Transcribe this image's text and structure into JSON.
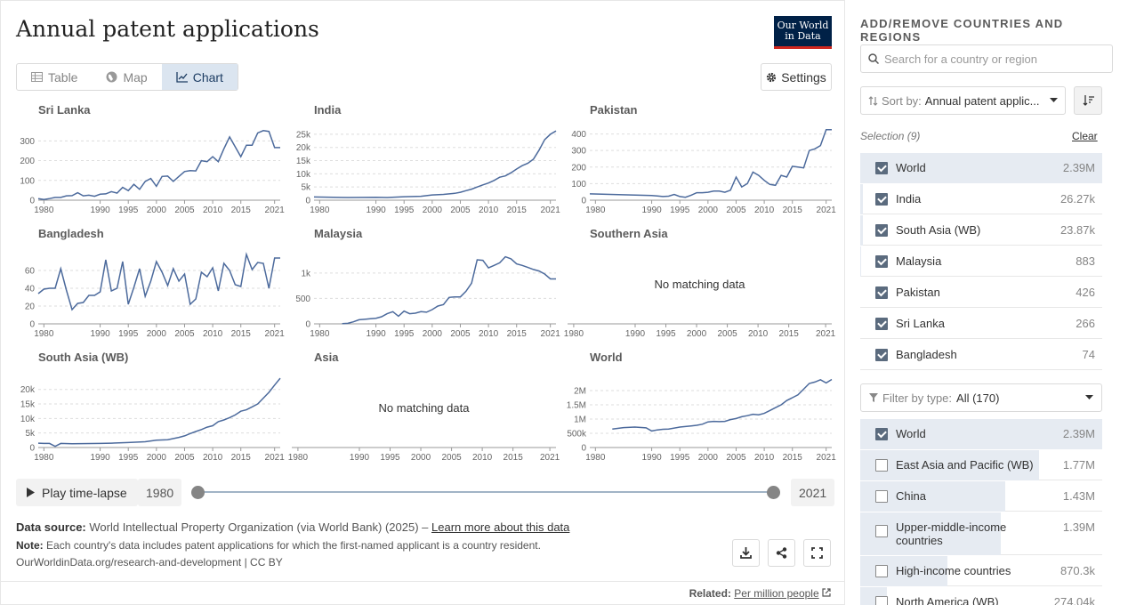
{
  "header": {
    "title": "Annual patent applications",
    "logo_line1": "Our World",
    "logo_line2": "in Data"
  },
  "tabs": [
    {
      "label": "Table",
      "icon": "table-icon"
    },
    {
      "label": "Map",
      "icon": "globe-icon"
    },
    {
      "label": "Chart",
      "icon": "line-chart-icon",
      "active": true
    }
  ],
  "settings_label": "Settings",
  "timeline": {
    "play_label": "Play time-lapse",
    "start": "1980",
    "end": "2021"
  },
  "footer": {
    "source_label": "Data source:",
    "source_text": "World Intellectual Property Organization (via World Bank) (2025) – ",
    "learn_more": "Learn more about this data",
    "note_label": "Note:",
    "note_text": "Each country's data includes patent applications for which the first-named applicant is a country resident.",
    "url": "OurWorldinData.org/research-and-development | CC BY",
    "related_label": "Related:",
    "related_link": "Per million people"
  },
  "sidebar": {
    "title": "ADD/REMOVE COUNTRIES AND REGIONS",
    "search_placeholder": "Search for a country or region",
    "sort_label": "Sort by:",
    "sort_value": "Annual patent applic...",
    "selection_label": "Selection (9)",
    "clear_label": "Clear",
    "selected": [
      {
        "name": "World",
        "value": "2.39M",
        "checked": true,
        "share": 1.0
      },
      {
        "name": "India",
        "value": "26.27k",
        "checked": true,
        "share": 0.011
      },
      {
        "name": "South Asia (WB)",
        "value": "23.87k",
        "checked": true,
        "share": 0.01
      },
      {
        "name": "Malaysia",
        "value": "883",
        "checked": true,
        "share": 0.0004
      },
      {
        "name": "Pakistan",
        "value": "426",
        "checked": true,
        "share": 0.0002
      },
      {
        "name": "Sri Lanka",
        "value": "266",
        "checked": true,
        "share": 0.0001
      },
      {
        "name": "Bangladesh",
        "value": "74",
        "checked": true,
        "share": 3e-05
      }
    ],
    "filter_label": "Filter by type:",
    "filter_value": "All (170)",
    "all": [
      {
        "name": "World",
        "value": "2.39M",
        "checked": true,
        "share": 1.0
      },
      {
        "name": "East Asia and Pacific (WB)",
        "value": "1.77M",
        "checked": false,
        "share": 0.74
      },
      {
        "name": "China",
        "value": "1.43M",
        "checked": false,
        "share": 0.6
      },
      {
        "name": "Upper-middle-income countries",
        "value": "1.39M",
        "checked": false,
        "share": 0.58
      },
      {
        "name": "High-income countries",
        "value": "870.3k",
        "checked": false,
        "share": 0.36
      },
      {
        "name": "North America (WB)",
        "value": "274.04k",
        "checked": false,
        "share": 0.11
      }
    ]
  },
  "chart_data": [
    {
      "type": "line",
      "title": "Sri Lanka",
      "yticks": [
        "0",
        "100",
        "200",
        "300"
      ],
      "ylim": [
        0,
        360
      ],
      "x": [
        1979,
        1980,
        1981,
        1982,
        1983,
        1984,
        1985,
        1986,
        1987,
        1988,
        1989,
        1990,
        1991,
        1992,
        1993,
        1994,
        1995,
        1996,
        1997,
        1998,
        1999,
        2000,
        2001,
        2002,
        2003,
        2004,
        2005,
        2006,
        2007,
        2008,
        2009,
        2010,
        2011,
        2012,
        2013,
        2014,
        2015,
        2016,
        2017,
        2018,
        2019,
        2020,
        2021,
        2022
      ],
      "values": [
        8,
        3,
        8,
        14,
        14,
        22,
        23,
        38,
        22,
        25,
        20,
        30,
        32,
        43,
        36,
        65,
        48,
        80,
        55,
        95,
        110,
        70,
        120,
        122,
        95,
        120,
        145,
        150,
        148,
        200,
        195,
        220,
        195,
        260,
        320,
        270,
        220,
        278,
        278,
        340,
        352,
        348,
        266,
        266
      ],
      "xticks": [
        "1980",
        "1990",
        "1995",
        "2000",
        "2005",
        "2010",
        "2015",
        "2021"
      ]
    },
    {
      "type": "line",
      "title": "India",
      "yticks": [
        "0",
        "5k",
        "10k",
        "15k",
        "20k",
        "25k"
      ],
      "ylim": [
        0,
        27000
      ],
      "x": [
        1979,
        1985,
        1990,
        1992,
        1995,
        1998,
        2000,
        2002,
        2004,
        2005,
        2006,
        2007,
        2008,
        2009,
        2010,
        2011,
        2012,
        2013,
        2014,
        2015,
        2016,
        2017,
        2018,
        2019,
        2020,
        2021,
        2022
      ],
      "values": [
        1200,
        1000,
        1100,
        1000,
        1300,
        1500,
        2000,
        2200,
        2600,
        3000,
        3600,
        4200,
        5000,
        5800,
        6500,
        7500,
        8700,
        9200,
        10400,
        11800,
        13100,
        14000,
        15600,
        19000,
        23000,
        25000,
        26270
      ],
      "xticks": [
        "1980",
        "1990",
        "1995",
        "2000",
        "2005",
        "2010",
        "2015",
        "2021"
      ]
    },
    {
      "type": "line",
      "title": "Pakistan",
      "yticks": [
        "0",
        "100",
        "200",
        "300",
        "400"
      ],
      "ylim": [
        0,
        430
      ],
      "x": [
        1979,
        1990,
        1991,
        1992,
        1993,
        1994,
        1995,
        1996,
        1997,
        1998,
        1999,
        2000,
        2001,
        2002,
        2003,
        2004,
        2005,
        2006,
        2007,
        2008,
        2009,
        2010,
        2011,
        2012,
        2013,
        2014,
        2015,
        2016,
        2017,
        2018,
        2019,
        2020,
        2021,
        2022
      ],
      "values": [
        38,
        28,
        25,
        22,
        24,
        35,
        22,
        18,
        30,
        45,
        45,
        48,
        55,
        55,
        48,
        60,
        140,
        80,
        100,
        170,
        150,
        120,
        95,
        90,
        150,
        140,
        205,
        200,
        195,
        300,
        310,
        330,
        426,
        426
      ],
      "xticks": [
        "1980",
        "1990",
        "1995",
        "2000",
        "2005",
        "2010",
        "2015",
        "2021"
      ]
    },
    {
      "type": "line",
      "title": "Bangladesh",
      "yticks": [
        "0",
        "20",
        "40",
        "60"
      ],
      "ylim": [
        0,
        80
      ],
      "x": [
        1979,
        1980,
        1981,
        1982,
        1983,
        1984,
        1985,
        1986,
        1987,
        1988,
        1989,
        1990,
        1991,
        1992,
        1993,
        1994,
        1995,
        1996,
        1997,
        1998,
        1999,
        2000,
        2001,
        2002,
        2003,
        2004,
        2005,
        2006,
        2007,
        2008,
        2009,
        2010,
        2011,
        2012,
        2013,
        2014,
        2015,
        2016,
        2017,
        2018,
        2019,
        2020,
        2021,
        2022
      ],
      "values": [
        34,
        39,
        40,
        40,
        62,
        38,
        16,
        23,
        24,
        32,
        32,
        36,
        72,
        37,
        40,
        70,
        22,
        41,
        62,
        31,
        48,
        70,
        58,
        43,
        62,
        48,
        56,
        22,
        28,
        58,
        53,
        63,
        37,
        68,
        60,
        44,
        42,
        78,
        61,
        69,
        68,
        40,
        74,
        74
      ],
      "xticks": [
        "1980",
        "1990",
        "1995",
        "2000",
        "2005",
        "2010",
        "2015",
        "2021"
      ]
    },
    {
      "type": "line",
      "title": "Malaysia",
      "yticks": [
        "0",
        "500",
        "1k"
      ],
      "ylim": [
        0,
        1400
      ],
      "x": [
        1984,
        1985,
        1986,
        1987,
        1988,
        1989,
        1990,
        1991,
        1992,
        1993,
        1994,
        1995,
        1996,
        1997,
        1998,
        1999,
        2000,
        2001,
        2002,
        2003,
        2004,
        2005,
        2006,
        2007,
        2008,
        2009,
        2010,
        2011,
        2012,
        2013,
        2014,
        2015,
        2016,
        2017,
        2018,
        2019,
        2020,
        2021,
        2022
      ],
      "values": [
        5,
        10,
        40,
        80,
        90,
        100,
        110,
        140,
        200,
        240,
        150,
        250,
        200,
        210,
        240,
        230,
        280,
        350,
        380,
        520,
        530,
        530,
        640,
        800,
        1260,
        1250,
        1100,
        1150,
        1200,
        1320,
        1280,
        1180,
        1150,
        1110,
        1070,
        1040,
        980,
        883,
        883
      ],
      "xticks": [
        "1980",
        "1990",
        "1995",
        "2000",
        "2005",
        "2010",
        "2015",
        "2021"
      ]
    },
    {
      "type": "line",
      "title": "Southern Asia",
      "message": "No matching data",
      "xticks": [
        "1980",
        "1990",
        "1995",
        "2000",
        "2005",
        "2010",
        "2015",
        "2021"
      ]
    },
    {
      "type": "line",
      "title": "South Asia (WB)",
      "yticks": [
        "0",
        "5k",
        "10k",
        "15k",
        "20k"
      ],
      "ylim": [
        0,
        24500
      ],
      "x": [
        1979,
        1980,
        1981,
        1982,
        1983,
        1985,
        1990,
        1992,
        1995,
        1998,
        2000,
        2002,
        2004,
        2005,
        2006,
        2007,
        2008,
        2009,
        2010,
        2011,
        2012,
        2013,
        2014,
        2015,
        2016,
        2017,
        2018,
        2019,
        2020,
        2021,
        2022
      ],
      "values": [
        1500,
        1400,
        1400,
        400,
        1400,
        1300,
        1400,
        1500,
        1700,
        2000,
        2500,
        2700,
        3500,
        4000,
        4800,
        5500,
        6200,
        7000,
        7500,
        8900,
        9500,
        10300,
        11200,
        12500,
        13000,
        14000,
        15000,
        17000,
        19000,
        21500,
        23870
      ],
      "xticks": [
        "1980",
        "1990",
        "1995",
        "2000",
        "2005",
        "2010",
        "2015",
        "2021"
      ]
    },
    {
      "type": "line",
      "title": "Asia",
      "message": "No matching data",
      "xticks": [
        "1980",
        "1990",
        "1995",
        "2000",
        "2005",
        "2010",
        "2015",
        "2021"
      ]
    },
    {
      "type": "line",
      "title": "World",
      "yticks": [
        "0",
        "500k",
        "1M",
        "1.5M",
        "2M"
      ],
      "ylim": [
        0,
        2500000
      ],
      "x": [
        1983,
        1985,
        1987,
        1989,
        1990,
        1991,
        1992,
        1993,
        1995,
        1997,
        1998,
        1999,
        2000,
        2001,
        2002,
        2003,
        2004,
        2005,
        2006,
        2007,
        2008,
        2009,
        2010,
        2011,
        2012,
        2013,
        2014,
        2015,
        2016,
        2017,
        2018,
        2019,
        2020,
        2021,
        2022
      ],
      "values": [
        650000,
        700000,
        720000,
        690000,
        580000,
        620000,
        640000,
        650000,
        720000,
        760000,
        780000,
        820000,
        900000,
        920000,
        910000,
        920000,
        980000,
        1020000,
        1080000,
        1120000,
        1170000,
        1150000,
        1200000,
        1300000,
        1400000,
        1500000,
        1650000,
        1750000,
        1850000,
        2050000,
        2250000,
        2300000,
        2380000,
        2270000,
        2390000
      ],
      "xticks": [
        "1980",
        "1990",
        "1995",
        "2000",
        "2005",
        "2010",
        "2015",
        "2021"
      ]
    }
  ]
}
